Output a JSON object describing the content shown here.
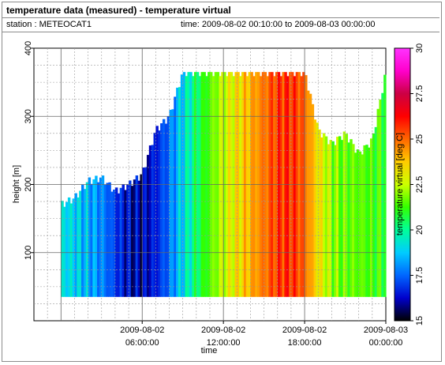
{
  "header": {
    "title": "temperature data (measured) - temperature virtual",
    "station": "station : METEOCAT1",
    "timerange": "time: 2009-08-02 00:10:00 to 2009-08-03 00:00:00"
  },
  "chart_data": {
    "type": "heatmap",
    "title": "temperature data (measured) - temperature virtual",
    "xlabel": "time",
    "ylabel": "height [m]",
    "colorbar_label": "temperature virtual [deg C]",
    "x_start": "2009-08-02 00:10:00",
    "x_end": "2009-08-03 00:00:00",
    "x_range_hours": [
      -2,
      24
    ],
    "ylim": [
      0,
      400
    ],
    "y_ticks": [
      100,
      200,
      300,
      400
    ],
    "x_ticks": [
      {
        "hours": 6,
        "line1": "2009-08-02",
        "line2": "06:00:00"
      },
      {
        "hours": 12,
        "line1": "2009-08-02",
        "line2": "12:00:00"
      },
      {
        "hours": 18,
        "line1": "2009-08-02",
        "line2": "18:00:00"
      },
      {
        "hours": 24,
        "line1": "2009-08-03",
        "line2": "00:00:00"
      }
    ],
    "colorbar_range": [
      15,
      30
    ],
    "colorbar_ticks": [
      "15",
      "17.5",
      "20",
      "22.5",
      "25",
      "27.5",
      "30"
    ],
    "data_bottom_height": 35,
    "grid": true,
    "colormap": [
      "#000000",
      "#0000cc",
      "#0066ff",
      "#00ccff",
      "#00ff99",
      "#33ff00",
      "#ccff00",
      "#ffcc00",
      "#ff6600",
      "#ff0000",
      "#cc0044",
      "#ff00cc",
      "#ff33ff"
    ],
    "hours": [
      0,
      1,
      2,
      3,
      4,
      5,
      6,
      7,
      8,
      9,
      10,
      11,
      12,
      13,
      14,
      15,
      16,
      17,
      18,
      19,
      20,
      21,
      22,
      23,
      24
    ],
    "temperature_mean": [
      19.2,
      18.9,
      18.4,
      17.9,
      17.0,
      16.2,
      16.1,
      16.6,
      17.6,
      19.0,
      20.4,
      21.5,
      22.5,
      23.3,
      24.1,
      24.8,
      25.6,
      25.8,
      25.0,
      23.3,
      22.0,
      21.6,
      21.6,
      21.3,
      21.2
    ],
    "profile_top_height": [
      170,
      180,
      205,
      210,
      190,
      200,
      215,
      280,
      300,
      365,
      365,
      365,
      365,
      365,
      365,
      365,
      365,
      365,
      365,
      280,
      260,
      275,
      245,
      265,
      365
    ]
  }
}
